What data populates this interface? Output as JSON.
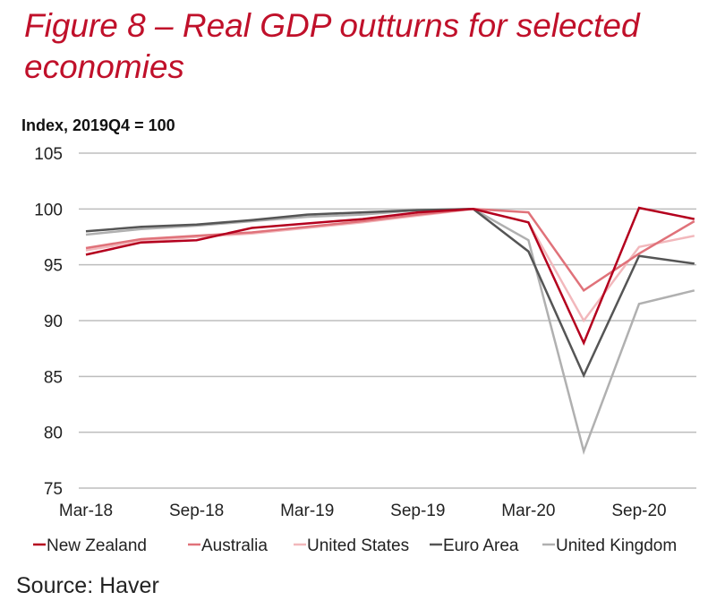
{
  "title": "Figure 8 – Real GDP outturns for selected economies",
  "source": "Source: Haver",
  "chart_data": {
    "type": "line",
    "title": "Figure 8 – Real GDP outturns for selected economies",
    "ylabel": "Index, 2019Q4 = 100",
    "xlabel": "",
    "ylim": [
      75,
      105
    ],
    "yticks": [
      75,
      80,
      85,
      90,
      95,
      100,
      105
    ],
    "grid": true,
    "legend": "bottom",
    "x": [
      "Mar-18",
      "Jun-18",
      "Sep-18",
      "Dec-18",
      "Mar-19",
      "Jun-19",
      "Sep-19",
      "Dec-19",
      "Mar-20",
      "Jun-20",
      "Sep-20",
      "Dec-20"
    ],
    "xtick_labels": [
      "Mar-18",
      "Sep-18",
      "Mar-19",
      "Sep-19",
      "Mar-20",
      "Sep-20"
    ],
    "xtick_indices": [
      0,
      2,
      4,
      6,
      8,
      10
    ],
    "series": [
      {
        "name": "New Zealand",
        "color": "#b4001e",
        "values": [
          95.9,
          97.0,
          97.2,
          98.3,
          98.7,
          99.1,
          99.7,
          100,
          98.8,
          88.0,
          100.1,
          99.1
        ]
      },
      {
        "name": "Australia",
        "color": "#e0727a",
        "values": [
          96.5,
          97.3,
          97.6,
          97.9,
          98.4,
          98.9,
          99.5,
          100,
          99.7,
          92.7,
          96.0,
          98.9
        ]
      },
      {
        "name": "United States",
        "color": "#f2b8bc",
        "values": [
          96.3,
          97.1,
          97.5,
          97.8,
          98.3,
          98.8,
          99.4,
          100,
          98.8,
          90.0,
          96.6,
          97.6
        ]
      },
      {
        "name": "Euro Area",
        "color": "#555555",
        "values": [
          98.0,
          98.4,
          98.6,
          99.0,
          99.5,
          99.7,
          99.9,
          100,
          96.2,
          85.1,
          95.8,
          95.1
        ]
      },
      {
        "name": "United Kingdom",
        "color": "#b0b0b0",
        "values": [
          97.7,
          98.2,
          98.5,
          98.9,
          99.3,
          99.5,
          99.9,
          100,
          97.2,
          78.3,
          91.5,
          92.7
        ]
      }
    ]
  }
}
